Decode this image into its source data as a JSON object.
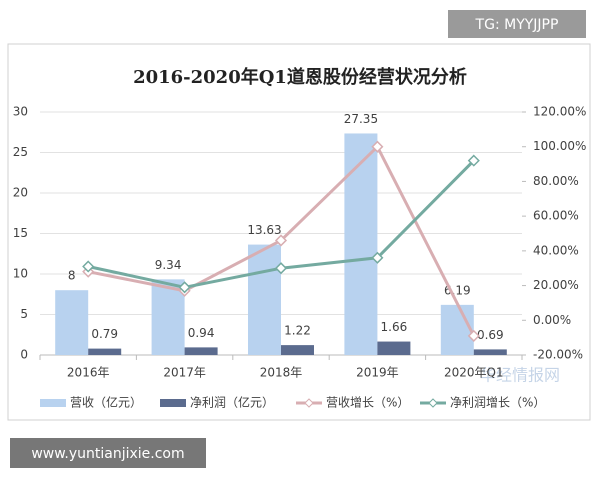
{
  "chart_data": {
    "type": "bar",
    "title": "2016-2020年Q1道恩股份经营状况分析",
    "categories": [
      "2016年",
      "2017年",
      "2018年",
      "2019年",
      "2020年Q1"
    ],
    "series": [
      {
        "name": "营收（亿元）",
        "type": "bar",
        "color": "#b8d2ef",
        "values": [
          8,
          9.34,
          13.63,
          27.35,
          6.19
        ]
      },
      {
        "name": "净利润（亿元）",
        "type": "bar",
        "color": "#5b6b8e",
        "values": [
          0.79,
          0.94,
          1.22,
          1.66,
          0.69
        ]
      },
      {
        "name": "营收增长（%）",
        "type": "line",
        "axis": "y2",
        "color": "#d8aeb2",
        "values": [
          28,
          17,
          46,
          100,
          -9
        ]
      },
      {
        "name": "净利润增长（%）",
        "type": "line",
        "axis": "y2",
        "color": "#74aaa0",
        "values": [
          31,
          19,
          30,
          36,
          92
        ]
      }
    ],
    "ylim": [
      0,
      30
    ],
    "yticks": [
      0,
      5,
      10,
      15,
      20,
      25,
      30
    ],
    "y2lim": [
      -20,
      120
    ],
    "y2ticks": [
      {
        "value": -20,
        "label": "-20.00%"
      },
      {
        "value": 0,
        "label": "0.00%"
      },
      {
        "value": 20,
        "label": "20.00%"
      },
      {
        "value": 40,
        "label": "40.00%"
      },
      {
        "value": 60,
        "label": "60.00%"
      },
      {
        "value": 80,
        "label": "80.00%"
      },
      {
        "value": 100,
        "label": "100.00%"
      },
      {
        "value": 120,
        "label": "120.00%"
      }
    ],
    "data_labels": true
  },
  "watermarks": [
    "TG: MYYJJPP",
    "www.yuntianjixie.com",
    "华经情报网"
  ]
}
